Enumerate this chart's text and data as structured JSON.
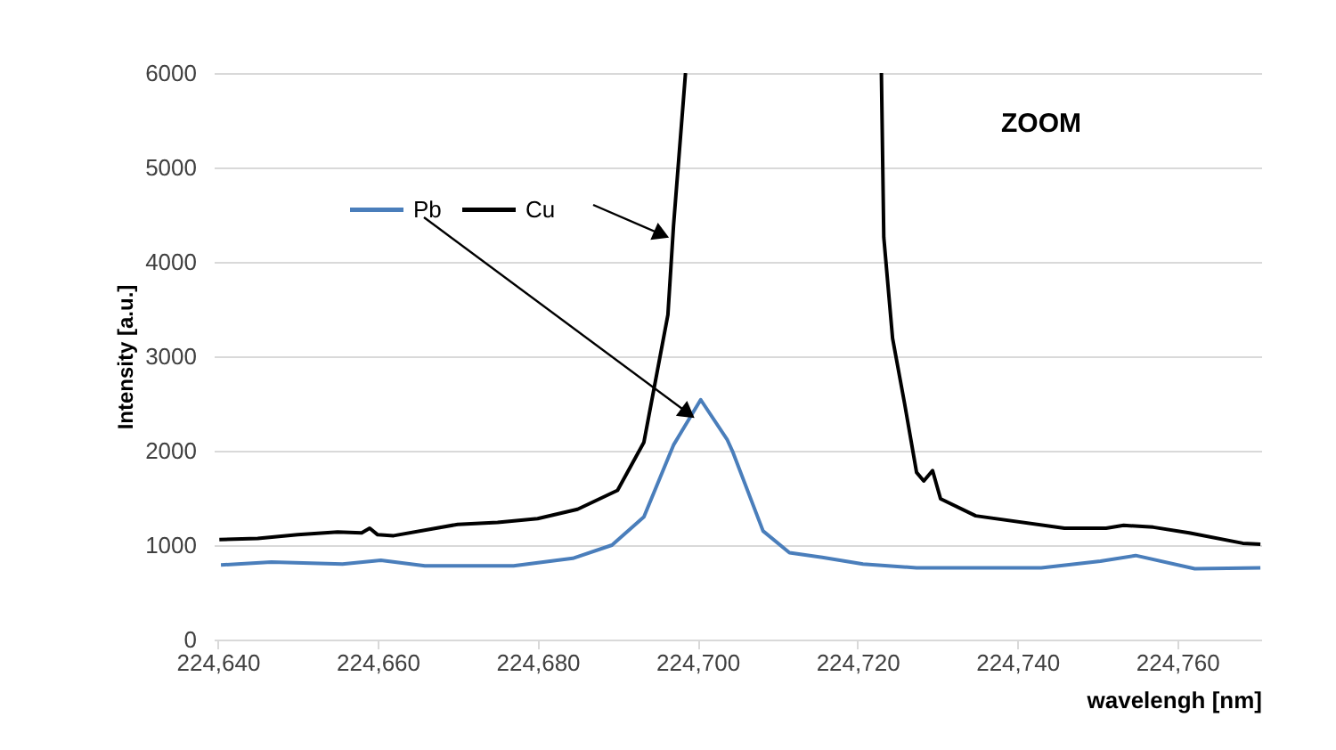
{
  "chart_data": {
    "type": "line",
    "xlabel": "wavelengh [nm]",
    "ylabel": "Intensity [a.u.]",
    "annotations": [
      "ZOOM"
    ],
    "xlim": [
      224639.5,
      224770.5
    ],
    "xticks": [
      {
        "value": 224640,
        "label": "224,640"
      },
      {
        "value": 224660,
        "label": "224,660"
      },
      {
        "value": 224680,
        "label": "224,680"
      },
      {
        "value": 224700,
        "label": "224,700"
      },
      {
        "value": 224720,
        "label": "224,720"
      },
      {
        "value": 224740,
        "label": "224,740"
      },
      {
        "value": 224760,
        "label": "224,760"
      }
    ],
    "ylim": [
      0,
      6000
    ],
    "yticks": [
      0,
      1000,
      2000,
      3000,
      4000,
      5000,
      6000
    ],
    "grid": "y",
    "legend": "top left",
    "line_style": "solid",
    "marker": "none",
    "series": [
      {
        "name": "Pb",
        "color": "#4a7ebb",
        "x": [
          224640.4,
          224646.7,
          224655.6,
          224660.4,
          224665.9,
          224677,
          224684.4,
          224689.3,
          224693.3,
          224697,
          224700.4,
          224703.7,
          224704.4,
          224708.2,
          224711.5,
          224715.6,
          224720.7,
          224727.4,
          224743,
          224750.4,
          224754.8,
          224762.2,
          224770.4
        ],
        "values": [
          790,
          820,
          800,
          840,
          780,
          780,
          860,
          1000,
          1300,
          2060,
          2540,
          2120,
          1990,
          1150,
          920,
          870,
          800,
          760,
          760,
          830,
          890,
          750,
          760
        ]
      },
      {
        "name": "Cu",
        "color": "#000000",
        "x": [
          224640.2,
          224645,
          224650,
          224655,
          224658,
          224659,
          224660,
          224662,
          224670,
          224675,
          224680,
          224685,
          224688,
          224690,
          224693.3,
          224696.3,
          224697,
          224698.5,
          224710,
          224723,
          224723.3,
          224724.4,
          224725.9,
          224727.4,
          224728.3,
          224729.4,
          224730.4,
          224734.8,
          224745.9,
          224751.1,
          224753.3,
          224757,
          224761.5,
          224768.2,
          224770.4
        ],
        "values": [
          1060,
          1070,
          1110,
          1140,
          1130,
          1180,
          1110,
          1100,
          1220,
          1240,
          1280,
          1380,
          1500,
          1580,
          2090,
          3440,
          4380,
          6000,
          null,
          6000,
          4260,
          3190,
          2500,
          1770,
          1680,
          1790,
          1490,
          1310,
          1180,
          1180,
          1210,
          1190,
          1130,
          1020,
          1010
        ]
      }
    ]
  }
}
